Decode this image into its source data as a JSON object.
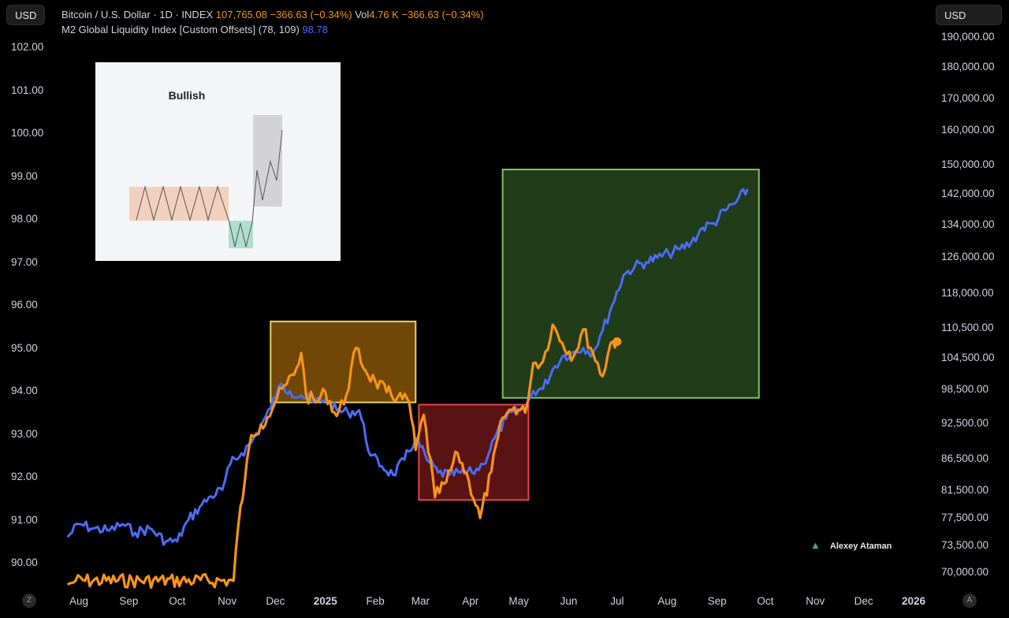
{
  "currency_left": "USD",
  "currency_right": "USD",
  "legend": {
    "symbol": "Bitcoin / U.S. Dollar · 1D · INDEX",
    "price": "107,765.08",
    "change": "−366.63 (−0.34%)",
    "vol_label": "Vol",
    "vol_value": "4.76 K",
    "vol_change": "−366.63 (−0.34%)",
    "indicator": "M2 Global Liquidity Index [Custom Offsets] (78, 109)",
    "indicator_value": "98.78"
  },
  "inset_title": "Bullish",
  "watermark": "Alexey Ataman",
  "corner_left": "Z",
  "corner_right": "A",
  "colors": {
    "btc": "#f7931a",
    "m2": "#4a6cf7",
    "yellow_box": "#e6d65a",
    "red_box": "#e04848",
    "green_box": "#7fc264"
  },
  "chart_data": {
    "type": "line",
    "x_ticks": [
      "Aug",
      "Sep",
      "Oct",
      "Nov",
      "Dec",
      "2025",
      "Feb",
      "Mar",
      "Apr",
      "May",
      "Jun",
      "Jul",
      "Aug",
      "Sep",
      "Oct",
      "Nov",
      "Dec",
      "2026"
    ],
    "y_left_ticks": [
      "102.00",
      "101.00",
      "100.00",
      "99.00",
      "98.00",
      "97.00",
      "96.00",
      "95.00",
      "94.00",
      "93.00",
      "92.00",
      "91.00",
      "90.00"
    ],
    "y_right_ticks": [
      "190,000.00",
      "180,000.00",
      "170,000.00",
      "160,000.00",
      "150,000.00",
      "142,000.00",
      "134,000.00",
      "126,000.00",
      "118,000.00",
      "110,500.00",
      "104,500.00",
      "98,500.00",
      "92,500.00",
      "86,500.00",
      "81,500.00",
      "77,500.00",
      "73,500.00",
      "70,000.00"
    ],
    "series": [
      {
        "name": "M2 Global Liquidity Index [Custom Offsets] (78, 109)",
        "axis": "left",
        "points": [
          [
            "Jul 25 2024",
            90.6
          ],
          [
            "Aug 1 2024",
            90.9
          ],
          [
            "Aug 10 2024",
            90.8
          ],
          [
            "Aug 20 2024",
            90.75
          ],
          [
            "Aug 28 2024",
            90.9
          ],
          [
            "Sep 5 2024",
            90.7
          ],
          [
            "Sep 14 2024",
            90.8
          ],
          [
            "Sep 24 2024",
            90.5
          ],
          [
            "Oct 1 2024",
            90.5
          ],
          [
            "Oct 8 2024",
            91.0
          ],
          [
            "Oct 15 2024",
            91.3
          ],
          [
            "Oct 22 2024",
            91.55
          ],
          [
            "Oct 29 2024",
            91.7
          ],
          [
            "Nov 3 2024",
            92.3
          ],
          [
            "Nov 10 2024",
            92.55
          ],
          [
            "Nov 16 2024",
            92.8
          ],
          [
            "Nov 22 2024",
            93.2
          ],
          [
            "Nov 28 2024",
            93.6
          ],
          [
            "Dec 3 2024",
            94.1
          ],
          [
            "Dec 10 2024",
            94.0
          ],
          [
            "Dec 17 2024",
            93.9
          ],
          [
            "Dec 24 2024",
            93.75
          ],
          [
            "Jan 1 2025",
            93.8
          ],
          [
            "Jan 8 2025",
            93.55
          ],
          [
            "Jan 15 2025",
            93.5
          ],
          [
            "Jan 22 2025",
            93.55
          ],
          [
            "Jan 29 2025",
            92.5
          ],
          [
            "Feb 5 2025",
            92.25
          ],
          [
            "Feb 12 2025",
            92.05
          ],
          [
            "Feb 19 2025",
            92.4
          ],
          [
            "Feb 26 2025",
            92.9
          ],
          [
            "Mar 5 2025",
            92.4
          ],
          [
            "Mar 12 2025",
            92.1
          ],
          [
            "Mar 19 2025",
            92.05
          ],
          [
            "Mar 26 2025",
            92.1
          ],
          [
            "Apr 2 2025",
            92.1
          ],
          [
            "Apr 9 2025",
            92.3
          ],
          [
            "Apr 16 2025",
            92.9
          ],
          [
            "Apr 23 2025",
            93.35
          ],
          [
            "Apr 30 2025",
            93.55
          ],
          [
            "May 5 2025",
            93.6
          ],
          [
            "May 10 2025",
            94.0
          ],
          [
            "May 16 2025",
            94.05
          ],
          [
            "May 22 2025",
            94.5
          ],
          [
            "May 28 2025",
            94.8
          ],
          [
            "Jun 4 2025",
            94.9
          ],
          [
            "Jun 10 2025",
            95.0
          ],
          [
            "Jun 16 2025",
            94.9
          ],
          [
            "Jun 22 2025",
            95.4
          ],
          [
            "Jun 28 2025",
            96.0
          ],
          [
            "Jul 5 2025",
            96.7
          ],
          [
            "Jul 12 2025",
            96.9
          ],
          [
            "Jul 19 2025",
            97.0
          ],
          [
            "Jul 26 2025",
            97.1
          ],
          [
            "Aug 2 2025",
            97.2
          ],
          [
            "Aug 9 2025",
            97.3
          ],
          [
            "Aug 16 2025",
            97.45
          ],
          [
            "Aug 23 2025",
            97.8
          ],
          [
            "Aug 30 2025",
            97.9
          ],
          [
            "Sep 6 2025",
            98.2
          ],
          [
            "Sep 13 2025",
            98.4
          ],
          [
            "Sep 20 2025",
            98.7
          ]
        ]
      },
      {
        "name": "Bitcoin / U.S. Dollar · 1D · INDEX",
        "axis": "right",
        "points": [
          [
            "Jul 25 2024",
            68400
          ],
          [
            "Jul 30 2024",
            68900
          ],
          [
            "Nov 5 2024",
            68900
          ],
          [
            "Nov 8 2024",
            76500
          ],
          [
            "Nov 12 2024",
            83000
          ],
          [
            "Nov 16 2024",
            90500
          ],
          [
            "Nov 22 2024",
            92300
          ],
          [
            "Nov 26 2024",
            93500
          ],
          [
            "Dec 2 2024",
            97000
          ],
          [
            "Dec 8 2024",
            99500
          ],
          [
            "Dec 14 2024",
            102500
          ],
          [
            "Dec 17 2024",
            105500
          ],
          [
            "Dec 20 2024",
            97500
          ],
          [
            "Dec 26 2024",
            96200
          ],
          [
            "Jan 1 2025",
            98000
          ],
          [
            "Jan 8 2025",
            93800
          ],
          [
            "Jan 14 2025",
            97500
          ],
          [
            "Jan 20 2025",
            106500
          ],
          [
            "Jan 26 2025",
            102000
          ],
          [
            "Feb 1 2025",
            100000
          ],
          [
            "Feb 8 2025",
            98000
          ],
          [
            "Feb 15 2025",
            97200
          ],
          [
            "Feb 22 2025",
            96200
          ],
          [
            "Feb 26 2025",
            88000
          ],
          [
            "Mar 3 2025",
            94000
          ],
          [
            "Mar 10 2025",
            80500
          ],
          [
            "Mar 17 2025",
            82800
          ],
          [
            "Mar 24 2025",
            87500
          ],
          [
            "Mar 31 2025",
            83000
          ],
          [
            "Apr 7 2025",
            77500
          ],
          [
            "Apr 14 2025",
            84500
          ],
          [
            "Apr 21 2025",
            93500
          ],
          [
            "Apr 28 2025",
            95300
          ],
          [
            "May 5 2025",
            94400
          ],
          [
            "May 10 2025",
            103500
          ],
          [
            "May 16 2025",
            103800
          ],
          [
            "May 22 2025",
            111200
          ],
          [
            "May 28 2025",
            107500
          ],
          [
            "Jun 4 2025",
            104800
          ],
          [
            "Jun 10 2025",
            110200
          ],
          [
            "Jun 16 2025",
            105500
          ],
          [
            "Jun 22 2025",
            101000
          ],
          [
            "Jun 27 2025",
            107500
          ],
          [
            "Jul 1 2025",
            107765
          ]
        ]
      }
    ],
    "boxes": [
      {
        "color": "yellow",
        "x": [
          "Nov 28 2024",
          "Feb 26 2025"
        ],
        "y_right": [
          96200,
          111900
        ]
      },
      {
        "color": "red",
        "x": [
          "Feb 28 2025",
          "May 7 2025"
        ],
        "y_right": [
          80100,
          95800
        ]
      },
      {
        "color": "green",
        "x": [
          "Apr 21 2025",
          "Sep 27 2025"
        ],
        "y_right": [
          97000,
          148700
        ]
      }
    ],
    "last_point": {
      "date": "Jul 1 2025",
      "value": 107765.08
    }
  }
}
